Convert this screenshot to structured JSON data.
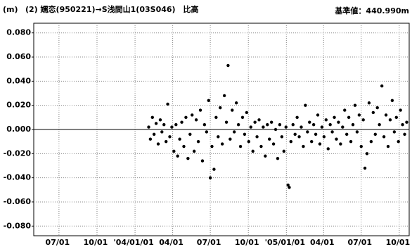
{
  "chart_data": {
    "type": "scatter",
    "title": "(2) 嬬恋(950221)→S浅間山1(03S046)　比高",
    "y_label": "(m)",
    "annotation": "基準値：440.990m",
    "color": "#000000",
    "grid": true,
    "xlim": [
      "2003-05-01",
      "2005-10-25"
    ],
    "xticks": [
      {
        "value": "2003-07-01",
        "label": "07/01"
      },
      {
        "value": "2003-10-01",
        "label": "10/01"
      },
      {
        "value": "2004-01-01",
        "label": "'04/01/01"
      },
      {
        "value": "2004-04-01",
        "label": "04/01"
      },
      {
        "value": "2004-07-01",
        "label": "07/01"
      },
      {
        "value": "2004-10-01",
        "label": "10/01"
      },
      {
        "value": "2005-01-01",
        "label": "'05/01/01"
      },
      {
        "value": "2005-04-01",
        "label": "04/01"
      },
      {
        "value": "2005-07-01",
        "label": "07/01"
      },
      {
        "value": "2005-10-01",
        "label": "10/01"
      }
    ],
    "ylim": [
      -0.088,
      0.088
    ],
    "yticks": [
      {
        "value": 0.08,
        "label": "0.080"
      },
      {
        "value": 0.06,
        "label": "0.060"
      },
      {
        "value": 0.04,
        "label": "0.040"
      },
      {
        "value": 0.02,
        "label": "0.020"
      },
      {
        "value": 0,
        "label": "0.000"
      },
      {
        "value": -0.02,
        "label": "-0.020"
      },
      {
        "value": -0.04,
        "label": "-0.040"
      },
      {
        "value": -0.06,
        "label": "-0.060"
      },
      {
        "value": -0.08,
        "label": "-0.080"
      }
    ],
    "x": [
      "2004-02-03",
      "2004-02-07",
      "2004-02-12",
      "2004-02-16",
      "2004-02-21",
      "2004-02-26",
      "2004-03-02",
      "2004-03-06",
      "2004-03-11",
      "2004-03-16",
      "2004-03-20",
      "2004-03-25",
      "2004-03-30",
      "2004-04-04",
      "2004-04-09",
      "2004-04-13",
      "2004-04-18",
      "2004-04-23",
      "2004-04-28",
      "2004-05-03",
      "2004-05-08",
      "2004-05-13",
      "2004-05-18",
      "2004-05-23",
      "2004-05-28",
      "2004-06-02",
      "2004-06-07",
      "2004-06-12",
      "2004-06-17",
      "2004-06-22",
      "2004-06-27",
      "2004-07-01",
      "2004-07-05",
      "2004-07-10",
      "2004-07-15",
      "2004-07-20",
      "2004-07-25",
      "2004-07-30",
      "2004-08-04",
      "2004-08-09",
      "2004-08-13",
      "2004-08-18",
      "2004-08-23",
      "2004-08-28",
      "2004-09-02",
      "2004-09-07",
      "2004-09-12",
      "2004-09-17",
      "2004-09-22",
      "2004-09-27",
      "2004-10-02",
      "2004-10-07",
      "2004-10-12",
      "2004-10-17",
      "2004-10-22",
      "2004-10-27",
      "2004-11-01",
      "2004-11-06",
      "2004-11-11",
      "2004-11-16",
      "2004-11-21",
      "2004-11-26",
      "2004-12-01",
      "2004-12-06",
      "2004-12-11",
      "2004-12-16",
      "2004-12-21",
      "2004-12-26",
      "2004-12-31",
      "2005-01-05",
      "2005-01-08",
      "2005-01-12",
      "2005-01-17",
      "2005-01-22",
      "2005-01-27",
      "2005-02-01",
      "2005-02-06",
      "2005-02-11",
      "2005-02-16",
      "2005-02-21",
      "2005-02-26",
      "2005-03-03",
      "2005-03-08",
      "2005-03-13",
      "2005-03-18",
      "2005-03-23",
      "2005-03-28",
      "2005-04-02",
      "2005-04-07",
      "2005-04-12",
      "2005-04-17",
      "2005-04-22",
      "2005-04-27",
      "2005-05-02",
      "2005-05-07",
      "2005-05-12",
      "2005-05-17",
      "2005-05-22",
      "2005-05-27",
      "2005-06-01",
      "2005-06-06",
      "2005-06-11",
      "2005-06-16",
      "2005-06-21",
      "2005-06-26",
      "2005-07-01",
      "2005-07-06",
      "2005-07-10",
      "2005-07-15",
      "2005-07-20",
      "2005-07-25",
      "2005-07-30",
      "2005-08-04",
      "2005-08-09",
      "2005-08-14",
      "2005-08-20",
      "2005-08-25",
      "2005-08-30",
      "2005-09-04",
      "2005-09-09",
      "2005-09-14",
      "2005-09-19",
      "2005-09-24",
      "2005-09-29",
      "2005-10-04",
      "2005-10-09",
      "2005-10-14",
      "2005-10-19"
    ],
    "values": [
      0.002,
      -0.008,
      0.01,
      -0.004,
      0.005,
      -0.012,
      0.008,
      -0.002,
      0.004,
      -0.01,
      0.021,
      -0.006,
      0.002,
      -0.018,
      0.004,
      -0.022,
      -0.008,
      0.006,
      -0.014,
      0.01,
      -0.024,
      -0.004,
      0.012,
      -0.018,
      0.008,
      -0.01,
      0.016,
      -0.026,
      0.004,
      -0.002,
      0.024,
      -0.04,
      -0.014,
      -0.033,
      0.01,
      -0.006,
      0.018,
      -0.012,
      0.028,
      0.006,
      0.053,
      -0.008,
      0.016,
      -0.002,
      0.022,
      0.004,
      -0.014,
      0.01,
      -0.004,
      0.014,
      -0.01,
      0.002,
      -0.018,
      0.006,
      -0.006,
      0.008,
      -0.014,
      0.002,
      -0.022,
      0.004,
      -0.008,
      0.006,
      -0.012,
      0.0,
      -0.024,
      0.004,
      -0.006,
      -0.018,
      0.002,
      -0.046,
      -0.048,
      -0.01,
      0.004,
      -0.004,
      0.01,
      -0.006,
      0.002,
      -0.014,
      0.02,
      -0.002,
      0.006,
      -0.01,
      0.004,
      -0.004,
      0.012,
      -0.012,
      0.002,
      -0.006,
      0.008,
      -0.016,
      0.004,
      -0.002,
      0.01,
      -0.008,
      0.006,
      -0.012,
      0.002,
      0.016,
      -0.004,
      0.01,
      -0.01,
      0.004,
      0.02,
      -0.002,
      0.012,
      -0.014,
      0.008,
      -0.032,
      -0.02,
      0.022,
      -0.01,
      0.014,
      -0.004,
      0.018,
      0.004,
      0.036,
      -0.006,
      0.012,
      -0.014,
      0.008,
      0.024,
      -0.002,
      0.01,
      -0.01,
      0.016,
      0.004,
      -0.004,
      0.006
    ]
  }
}
